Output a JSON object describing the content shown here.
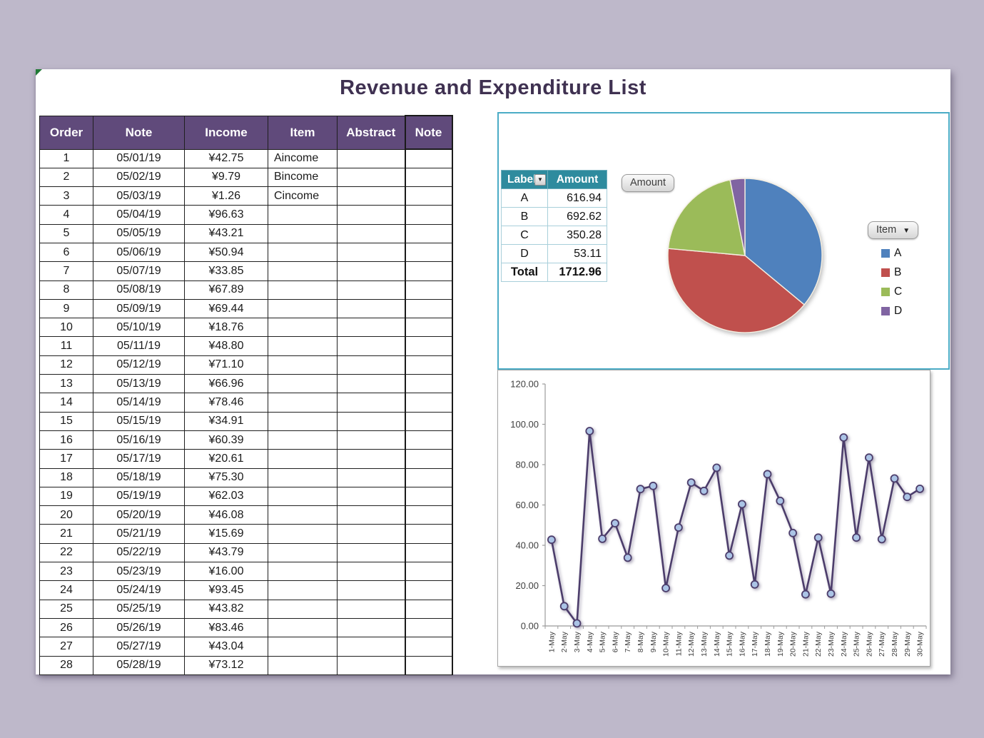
{
  "title": "Revenue and Expenditure List",
  "colors": {
    "background": "#beb8ca",
    "table_header": "#604a7b",
    "title_text": "#3f3151",
    "pivot_header": "#2e8b9e",
    "pie_panel_border": "#4bacc6",
    "line_panel_border": "#a6a6a6",
    "series_a": "#4f81bd",
    "series_b": "#c0504d",
    "series_c": "#9bbb59",
    "series_d": "#8064a2",
    "line_stroke": "#4c3d6b",
    "marker_fill": "#abc4e6"
  },
  "main_table": {
    "headers": [
      "Order",
      "Note",
      "Income",
      "Item",
      "Abstract",
      "Note"
    ],
    "rows": [
      [
        "1",
        "05/01/19",
        "¥42.75",
        "Aincome",
        "",
        ""
      ],
      [
        "2",
        "05/02/19",
        "¥9.79",
        "Bincome",
        "",
        ""
      ],
      [
        "3",
        "05/03/19",
        "¥1.26",
        "Cincome",
        "",
        ""
      ],
      [
        "4",
        "05/04/19",
        "¥96.63",
        "",
        "",
        ""
      ],
      [
        "5",
        "05/05/19",
        "¥43.21",
        "",
        "",
        ""
      ],
      [
        "6",
        "05/06/19",
        "¥50.94",
        "",
        "",
        ""
      ],
      [
        "7",
        "05/07/19",
        "¥33.85",
        "",
        "",
        ""
      ],
      [
        "8",
        "05/08/19",
        "¥67.89",
        "",
        "",
        ""
      ],
      [
        "9",
        "05/09/19",
        "¥69.44",
        "",
        "",
        ""
      ],
      [
        "10",
        "05/10/19",
        "¥18.76",
        "",
        "",
        ""
      ],
      [
        "11",
        "05/11/19",
        "¥48.80",
        "",
        "",
        ""
      ],
      [
        "12",
        "05/12/19",
        "¥71.10",
        "",
        "",
        ""
      ],
      [
        "13",
        "05/13/19",
        "¥66.96",
        "",
        "",
        ""
      ],
      [
        "14",
        "05/14/19",
        "¥78.46",
        "",
        "",
        ""
      ],
      [
        "15",
        "05/15/19",
        "¥34.91",
        "",
        "",
        ""
      ],
      [
        "16",
        "05/16/19",
        "¥60.39",
        "",
        "",
        ""
      ],
      [
        "17",
        "05/17/19",
        "¥20.61",
        "",
        "",
        ""
      ],
      [
        "18",
        "05/18/19",
        "¥75.30",
        "",
        "",
        ""
      ],
      [
        "19",
        "05/19/19",
        "¥62.03",
        "",
        "",
        ""
      ],
      [
        "20",
        "05/20/19",
        "¥46.08",
        "",
        "",
        ""
      ],
      [
        "21",
        "05/21/19",
        "¥15.69",
        "",
        "",
        ""
      ],
      [
        "22",
        "05/22/19",
        "¥43.79",
        "",
        "",
        ""
      ],
      [
        "23",
        "05/23/19",
        "¥16.00",
        "",
        "",
        ""
      ],
      [
        "24",
        "05/24/19",
        "¥93.45",
        "",
        "",
        ""
      ],
      [
        "25",
        "05/25/19",
        "¥43.82",
        "",
        "",
        ""
      ],
      [
        "26",
        "05/26/19",
        "¥83.46",
        "",
        "",
        ""
      ],
      [
        "27",
        "05/27/19",
        "¥43.04",
        "",
        "",
        ""
      ],
      [
        "28",
        "05/28/19",
        "¥73.12",
        "",
        "",
        ""
      ]
    ]
  },
  "pivot": {
    "label_header": "Label",
    "amount_header": "Amount",
    "rows": [
      [
        "A",
        "616.94"
      ],
      [
        "B",
        "692.62"
      ],
      [
        "C",
        "350.28"
      ],
      [
        "D",
        "53.11"
      ]
    ],
    "total_label": "Total",
    "total_value": "1712.96"
  },
  "buttons": {
    "amount": "Amount",
    "item": "Item"
  },
  "chart_data": [
    {
      "type": "pie",
      "title": "",
      "labels": [
        "A",
        "B",
        "C",
        "D"
      ],
      "values": [
        616.94,
        692.62,
        350.28,
        53.11
      ],
      "colors": [
        "#4f81bd",
        "#c0504d",
        "#9bbb59",
        "#8064a2"
      ],
      "legend_position": "right",
      "start_angle_deg": -90,
      "direction": "clockwise"
    },
    {
      "type": "line",
      "title": "",
      "xlabel": "",
      "ylabel": "",
      "x": [
        "1-May",
        "2-May",
        "3-May",
        "4-May",
        "5-May",
        "6-May",
        "7-May",
        "8-May",
        "9-May",
        "10-May",
        "11-May",
        "12-May",
        "13-May",
        "14-May",
        "15-May",
        "16-May",
        "17-May",
        "18-May",
        "19-May",
        "20-May",
        "21-May",
        "22-May",
        "23-May",
        "24-May",
        "25-May",
        "26-May",
        "27-May",
        "28-May",
        "29-May",
        "30-May"
      ],
      "values": [
        42.75,
        9.79,
        1.26,
        96.63,
        43.21,
        50.94,
        33.85,
        67.89,
        69.44,
        18.76,
        48.8,
        71.1,
        66.96,
        78.46,
        34.91,
        60.39,
        20.61,
        75.3,
        62.03,
        46.08,
        15.69,
        43.79,
        16.0,
        93.45,
        43.82,
        83.46,
        43.04,
        73.12,
        64.0,
        68.0
      ],
      "ylim": [
        0,
        120
      ],
      "ytick_step": 20,
      "ytick_labels": [
        "0.00",
        "20.00",
        "40.00",
        "60.00",
        "80.00",
        "100.00",
        "120.00"
      ],
      "grid": false,
      "legend_position": "none",
      "marker": "circle"
    }
  ],
  "legend": [
    {
      "label": "A",
      "color": "#4f81bd"
    },
    {
      "label": "B",
      "color": "#c0504d"
    },
    {
      "label": "C",
      "color": "#9bbb59"
    },
    {
      "label": "D",
      "color": "#8064a2"
    }
  ]
}
